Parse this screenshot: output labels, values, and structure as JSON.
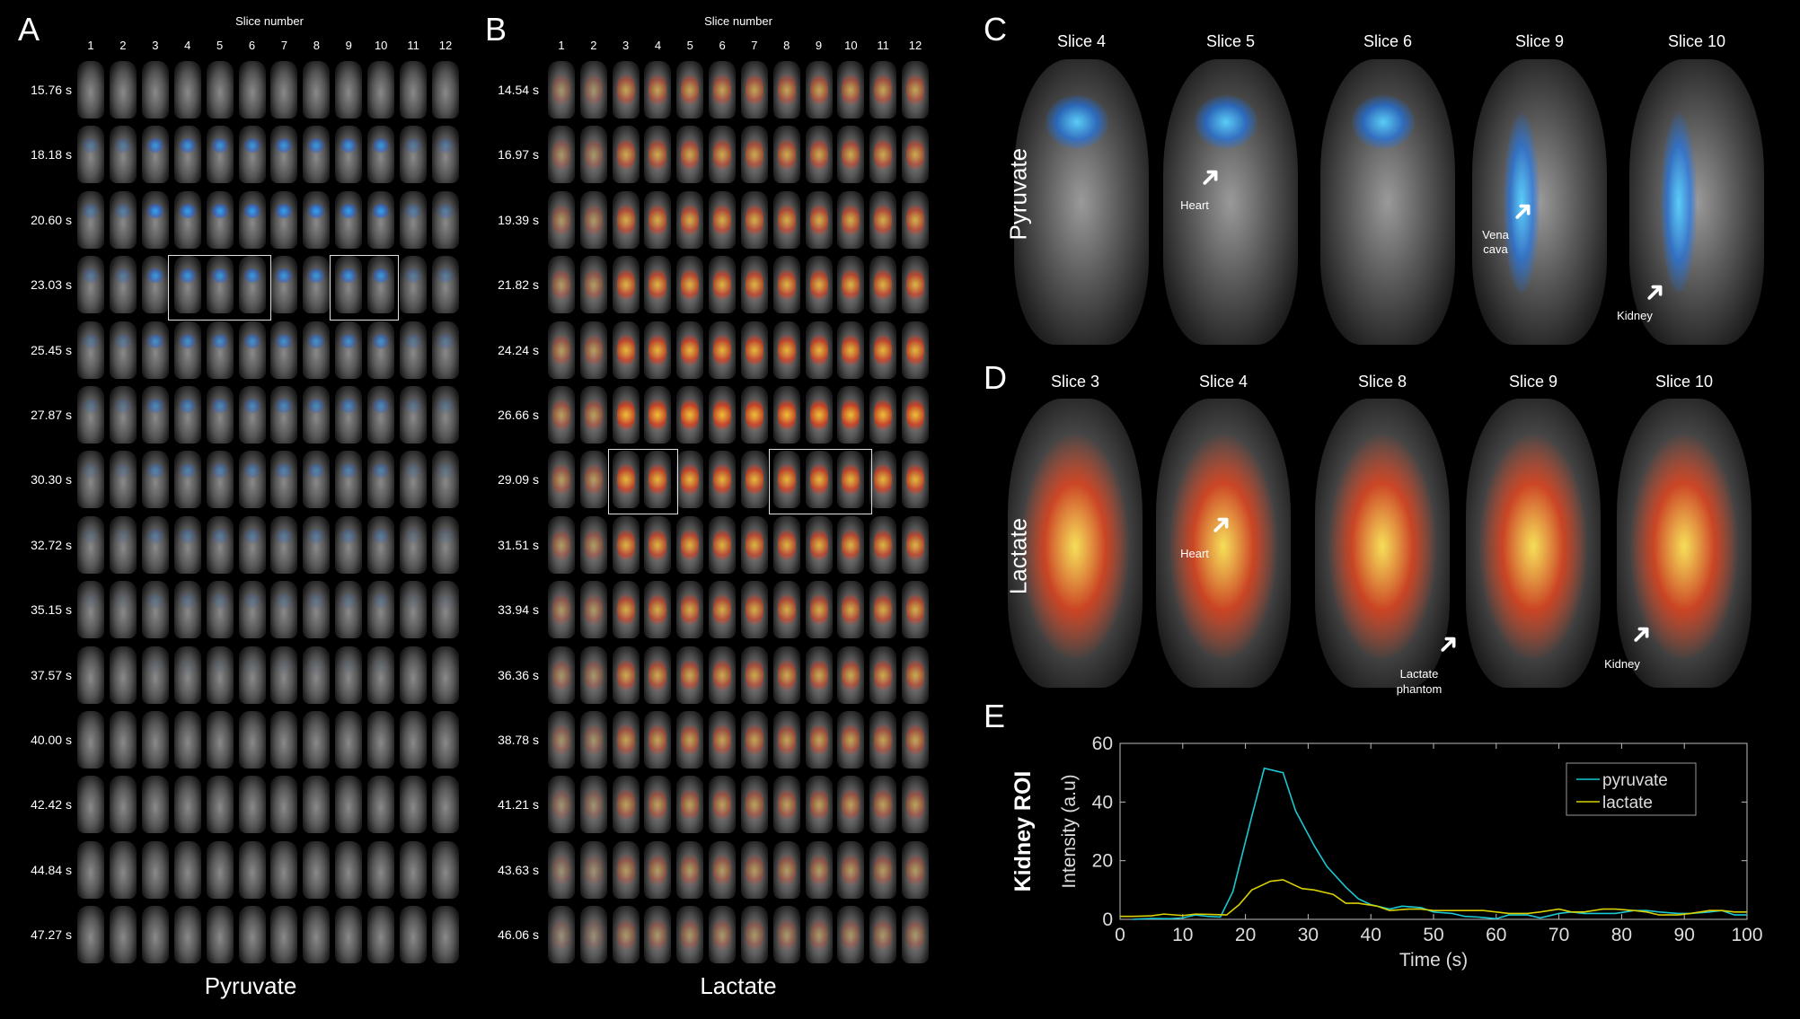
{
  "panelA": {
    "letter": "A",
    "slice_header": "Slice number",
    "columns": [
      "1",
      "2",
      "3",
      "4",
      "5",
      "6",
      "7",
      "8",
      "9",
      "10",
      "11",
      "12"
    ],
    "times": [
      "15.76 s",
      "18.18 s",
      "20.60 s",
      "23.03 s",
      "25.45 s",
      "27.87 s",
      "30.30 s",
      "32.72 s",
      "35.15 s",
      "37.57 s",
      "40.00 s",
      "42.42 s",
      "44.84 s",
      "47.27 s"
    ],
    "title": "Pyruvate",
    "overlay_color": "#1e90ff"
  },
  "panelB": {
    "letter": "B",
    "slice_header": "Slice number",
    "columns": [
      "1",
      "2",
      "3",
      "4",
      "5",
      "6",
      "7",
      "8",
      "9",
      "10",
      "11",
      "12"
    ],
    "times": [
      "14.54 s",
      "16.97 s",
      "19.39 s",
      "21.82 s",
      "24.24 s",
      "26.66 s",
      "29.09 s",
      "31.51 s",
      "33.94 s",
      "36.36 s",
      "38.78 s",
      "41.21 s",
      "43.63 s",
      "46.06 s"
    ],
    "title": "Lactate",
    "overlay_color": "#ff3000"
  },
  "panelC": {
    "letter": "C",
    "row_label": "Pyruvate",
    "slices": [
      "Slice 4",
      "Slice 5",
      "Slice 6",
      "Slice 9",
      "Slice 10"
    ],
    "annotations": {
      "heart": "Heart",
      "vena_cava_1": "Vena",
      "vena_cava_2": "cava",
      "kidney": "Kidney"
    }
  },
  "panelD": {
    "letter": "D",
    "row_label": "Lactate",
    "slices": [
      "Slice 3",
      "Slice 4",
      "Slice 8",
      "Slice 9",
      "Slice 10"
    ],
    "annotations": {
      "heart": "Heart",
      "phantom_1": "Lactate",
      "phantom_2": "phantom",
      "kidney": "Kidney"
    }
  },
  "panelE": {
    "letter": "E"
  },
  "chart_data": {
    "type": "line",
    "title": "",
    "xlabel": "Time (s)",
    "ylabel": "Intensity (a.u)",
    "ylabel_outer": "Kidney ROI",
    "xlim": [
      0,
      100
    ],
    "ylim": [
      0,
      60
    ],
    "xticks": [
      "0",
      "10",
      "20",
      "30",
      "40",
      "50",
      "60",
      "70",
      "80",
      "90",
      "100"
    ],
    "yticks": [
      "0",
      "20",
      "40",
      "60"
    ],
    "legend_position": "top-right",
    "series": [
      {
        "name": "pyruvate",
        "color": "#19c8d2",
        "x": [
          2,
          5,
          8,
          10,
          12,
          14,
          16,
          18,
          21,
          23,
          26,
          28,
          31,
          33,
          36,
          38,
          40,
          43,
          45,
          48,
          50,
          53,
          55,
          57,
          60,
          62,
          65,
          67,
          70,
          72,
          74,
          77,
          79,
          82,
          84,
          86,
          89,
          91,
          94,
          96,
          98,
          100
        ],
        "y": [
          0,
          0.3,
          0.2,
          0.5,
          1.5,
          1,
          0.8,
          9.5,
          35,
          51.5,
          50,
          37,
          25,
          18,
          11,
          7,
          5,
          3.5,
          4.5,
          4,
          2.5,
          2,
          1,
          0.8,
          0.2,
          1.5,
          1.5,
          0.5,
          2,
          2.5,
          2,
          2,
          2,
          3,
          3,
          2.5,
          2,
          2,
          2.5,
          3,
          1.5,
          1.5
        ]
      },
      {
        "name": "lactate",
        "color": "#d8d000",
        "x": [
          0,
          2,
          5,
          7,
          10,
          12,
          14,
          17,
          19,
          21,
          24,
          26,
          29,
          31,
          34,
          36,
          38,
          41,
          43,
          46,
          48,
          50,
          53,
          55,
          58,
          60,
          62,
          65,
          67,
          70,
          72,
          74,
          77,
          79,
          82,
          84,
          86,
          89,
          91,
          94,
          96,
          98,
          100
        ],
        "y": [
          1,
          1,
          1.2,
          1.8,
          1.3,
          1.8,
          1.7,
          1.5,
          5,
          10,
          13,
          13.5,
          10.5,
          10,
          8.5,
          5.5,
          5.5,
          4.5,
          3,
          3.5,
          3.5,
          3,
          3,
          3,
          3,
          2.5,
          2,
          2,
          2.5,
          3.5,
          2.5,
          2.5,
          3.5,
          3.5,
          3,
          2.5,
          1.5,
          1.5,
          2,
          3,
          3,
          2.5,
          2.5
        ]
      }
    ]
  }
}
